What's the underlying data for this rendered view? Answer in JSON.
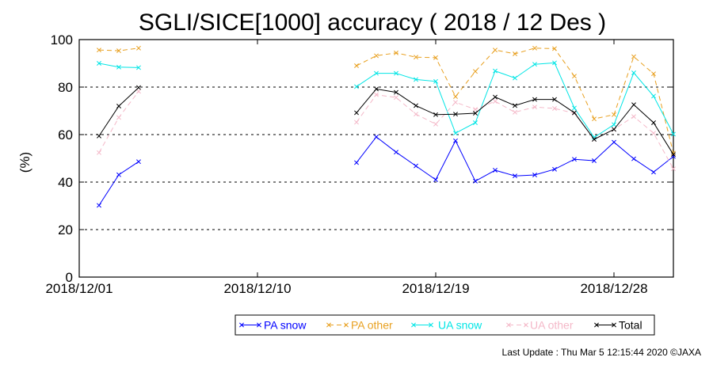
{
  "chart_data": {
    "type": "line",
    "title": "SGLI/SICE[1000] accuracy ( 2018 / 12 Des )",
    "ylabel": "(%)",
    "xlabel": "",
    "ylim": [
      0,
      100
    ],
    "yticks": [
      "0",
      "20",
      "40",
      "60",
      "80",
      "100"
    ],
    "xlim": [
      "2018/12/01",
      "2018/12/31"
    ],
    "xticks": [
      "2018/12/01",
      "2018/12/10",
      "2018/12/19",
      "2018/12/28"
    ],
    "grid": "horizontal dashed at 20, 40, 60, 80",
    "legend_position": "bottom",
    "series": [
      {
        "name": "PA snow",
        "color": "#0000ff",
        "dashed": false,
        "points": [
          [
            "2018/12/02",
            30.2
          ],
          [
            "2018/12/03",
            43.1
          ],
          [
            "2018/12/04",
            48.6
          ],
          [
            "2018/12/15",
            48.2
          ],
          [
            "2018/12/16",
            59.0
          ],
          [
            "2018/12/17",
            52.6
          ],
          [
            "2018/12/18",
            46.8
          ],
          [
            "2018/12/19",
            41.0
          ],
          [
            "2018/12/20",
            57.4
          ],
          [
            "2018/12/21",
            40.4
          ],
          [
            "2018/12/22",
            45.0
          ],
          [
            "2018/12/23",
            42.6
          ],
          [
            "2018/12/24",
            43.0
          ],
          [
            "2018/12/25",
            45.4
          ],
          [
            "2018/12/26",
            49.6
          ],
          [
            "2018/12/27",
            49.0
          ],
          [
            "2018/12/28",
            56.8
          ],
          [
            "2018/12/29",
            49.8
          ],
          [
            "2018/12/30",
            44.2
          ],
          [
            "2018/12/31",
            50.8
          ]
        ]
      },
      {
        "name": "PA other",
        "color": "#e8a020",
        "dashed": true,
        "points": [
          [
            "2018/12/02",
            95.6
          ],
          [
            "2018/12/03",
            95.3
          ],
          [
            "2018/12/04",
            96.4
          ],
          [
            "2018/12/15",
            89.0
          ],
          [
            "2018/12/16",
            93.2
          ],
          [
            "2018/12/17",
            94.4
          ],
          [
            "2018/12/18",
            92.6
          ],
          [
            "2018/12/19",
            92.4
          ],
          [
            "2018/12/20",
            76.0
          ],
          [
            "2018/12/21",
            86.6
          ],
          [
            "2018/12/22",
            95.6
          ],
          [
            "2018/12/23",
            94.0
          ],
          [
            "2018/12/24",
            96.4
          ],
          [
            "2018/12/25",
            96.2
          ],
          [
            "2018/12/26",
            84.6
          ],
          [
            "2018/12/27",
            66.6
          ],
          [
            "2018/12/28",
            68.4
          ],
          [
            "2018/12/29",
            92.8
          ],
          [
            "2018/12/30",
            85.6
          ],
          [
            "2018/12/31",
            52.2
          ]
        ]
      },
      {
        "name": "UA snow",
        "color": "#00e5e5",
        "dashed": false,
        "points": [
          [
            "2018/12/02",
            90.0
          ],
          [
            "2018/12/03",
            88.4
          ],
          [
            "2018/12/04",
            88.2
          ],
          [
            "2018/12/15",
            80.2
          ],
          [
            "2018/12/16",
            85.8
          ],
          [
            "2018/12/17",
            85.8
          ],
          [
            "2018/12/18",
            83.2
          ],
          [
            "2018/12/19",
            82.4
          ],
          [
            "2018/12/20",
            60.6
          ],
          [
            "2018/12/21",
            65.0
          ],
          [
            "2018/12/22",
            86.8
          ],
          [
            "2018/12/23",
            83.8
          ],
          [
            "2018/12/24",
            89.6
          ],
          [
            "2018/12/25",
            90.2
          ],
          [
            "2018/12/26",
            71.2
          ],
          [
            "2018/12/27",
            58.8
          ],
          [
            "2018/12/28",
            64.2
          ],
          [
            "2018/12/29",
            86.0
          ],
          [
            "2018/12/30",
            76.2
          ],
          [
            "2018/12/31",
            60.2
          ]
        ]
      },
      {
        "name": "UA other",
        "color": "#f4b8c8",
        "dashed": true,
        "points": [
          [
            "2018/12/02",
            52.4
          ],
          [
            "2018/12/03",
            67.2
          ],
          [
            "2018/12/04",
            78.2
          ],
          [
            "2018/12/15",
            65.2
          ],
          [
            "2018/12/16",
            76.8
          ],
          [
            "2018/12/17",
            75.6
          ],
          [
            "2018/12/18",
            68.6
          ],
          [
            "2018/12/19",
            64.4
          ],
          [
            "2018/12/20",
            73.6
          ],
          [
            "2018/12/21",
            70.6
          ],
          [
            "2018/12/22",
            74.0
          ],
          [
            "2018/12/23",
            69.4
          ],
          [
            "2018/12/24",
            71.6
          ],
          [
            "2018/12/25",
            71.0
          ],
          [
            "2018/12/26",
            69.0
          ],
          [
            "2018/12/27",
            58.0
          ],
          [
            "2018/12/28",
            62.2
          ],
          [
            "2018/12/29",
            67.6
          ],
          [
            "2018/12/30",
            60.6
          ],
          [
            "2018/12/31",
            45.6
          ]
        ]
      },
      {
        "name": "Total",
        "color": "#000000",
        "dashed": false,
        "points": [
          [
            "2018/12/02",
            59.4
          ],
          [
            "2018/12/03",
            72.0
          ],
          [
            "2018/12/04",
            79.8
          ],
          [
            "2018/12/15",
            69.2
          ],
          [
            "2018/12/16",
            79.2
          ],
          [
            "2018/12/17",
            77.8
          ],
          [
            "2018/12/18",
            72.2
          ],
          [
            "2018/12/19",
            68.4
          ],
          [
            "2018/12/20",
            68.6
          ],
          [
            "2018/12/21",
            69.0
          ],
          [
            "2018/12/22",
            75.8
          ],
          [
            "2018/12/23",
            72.2
          ],
          [
            "2018/12/24",
            74.8
          ],
          [
            "2018/12/25",
            74.8
          ],
          [
            "2018/12/26",
            69.2
          ],
          [
            "2018/12/27",
            58.0
          ],
          [
            "2018/12/28",
            62.2
          ],
          [
            "2018/12/29",
            72.6
          ],
          [
            "2018/12/30",
            65.0
          ],
          [
            "2018/12/31",
            51.6
          ]
        ]
      }
    ]
  },
  "footer": {
    "last_update": "Last Update : Thu Mar  5 12:15:44 2020  ©JAXA"
  }
}
